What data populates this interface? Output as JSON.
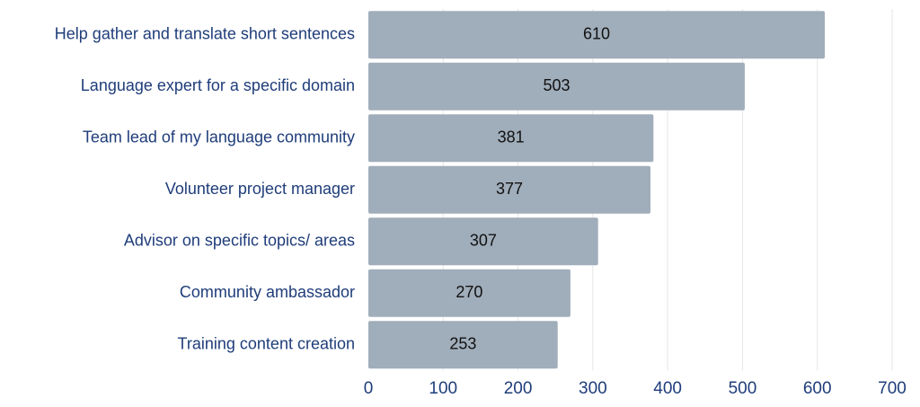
{
  "chart_data": {
    "type": "bar",
    "orientation": "horizontal",
    "categories": [
      "Help gather and translate short sentences",
      "Language expert for a specific domain",
      "Team lead of my language community",
      "Volunteer project manager",
      "Advisor on specific topics/ areas",
      "Community ambassador",
      "Training content creation"
    ],
    "values": [
      610,
      503,
      381,
      377,
      307,
      270,
      253
    ],
    "data_labels": [
      "610",
      "503",
      "381",
      "377",
      "307",
      "270",
      "253"
    ],
    "xlim": [
      0,
      700
    ],
    "x_ticks": [
      0,
      100,
      200,
      300,
      400,
      500,
      600,
      700
    ],
    "x_tick_labels": [
      "0",
      "100",
      "200",
      "300",
      "400",
      "500",
      "600",
      "700"
    ],
    "grid": "vertical",
    "legend": "none",
    "colors": {
      "bar": "#a0adba",
      "category_label": "#1f3d7a",
      "tick_label": "#1f3d7a",
      "data_label": "#111111",
      "grid": "#e6e6e6"
    }
  }
}
